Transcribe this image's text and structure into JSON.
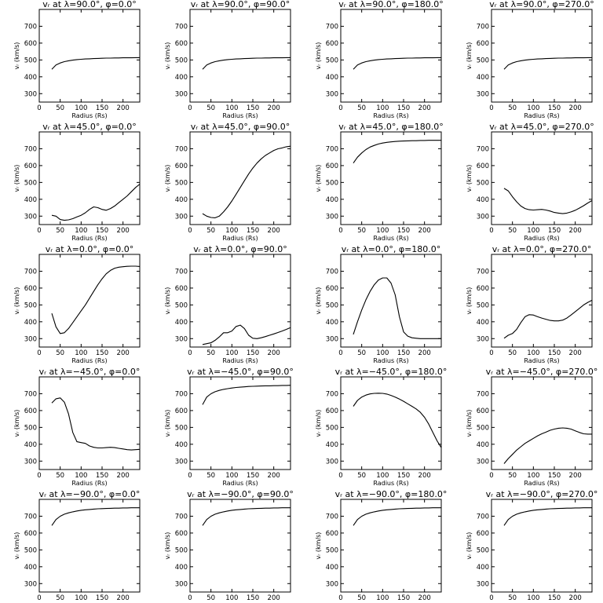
{
  "chart_data": [
    {
      "type": "line",
      "title": "vᵣ at λ=90.0°, φ=0.0°",
      "xlabel": "Radius (Rs)",
      "ylabel": "vᵣ (km/s)",
      "xlim": [
        0,
        240
      ],
      "ylim": [
        250,
        800
      ],
      "x": [
        30,
        40,
        50,
        60,
        70,
        80,
        90,
        100,
        110,
        120,
        130,
        140,
        150,
        160,
        170,
        180,
        190,
        200,
        210,
        220,
        230,
        240
      ],
      "y": [
        445,
        470,
        482,
        490,
        495,
        499,
        502,
        504,
        506,
        507,
        508,
        509,
        510,
        511,
        511,
        512,
        512,
        513,
        513,
        513,
        514,
        514
      ]
    },
    {
      "type": "line",
      "title": "vᵣ at λ=90.0°, φ=90.0°",
      "xlabel": "Radius (Rs)",
      "ylabel": "vᵣ (km/s)",
      "xlim": [
        0,
        240
      ],
      "ylim": [
        250,
        800
      ],
      "x": [
        30,
        40,
        50,
        60,
        70,
        80,
        90,
        100,
        110,
        120,
        130,
        140,
        150,
        160,
        170,
        180,
        190,
        200,
        210,
        220,
        230,
        240
      ],
      "y": [
        445,
        470,
        482,
        490,
        495,
        499,
        502,
        504,
        506,
        507,
        508,
        509,
        510,
        511,
        511,
        512,
        512,
        513,
        513,
        513,
        514,
        514
      ]
    },
    {
      "type": "line",
      "title": "vᵣ at λ=90.0°, φ=180.0°",
      "xlabel": "Radius (Rs)",
      "ylabel": "vᵣ (km/s)",
      "xlim": [
        0,
        240
      ],
      "ylim": [
        250,
        800
      ],
      "x": [
        30,
        40,
        50,
        60,
        70,
        80,
        90,
        100,
        110,
        120,
        130,
        140,
        150,
        160,
        170,
        180,
        190,
        200,
        210,
        220,
        230,
        240
      ],
      "y": [
        445,
        470,
        482,
        490,
        495,
        499,
        502,
        504,
        506,
        507,
        508,
        509,
        510,
        511,
        511,
        512,
        512,
        513,
        513,
        513,
        514,
        514
      ]
    },
    {
      "type": "line",
      "title": "vᵣ at λ=90.0°, φ=270.0°",
      "xlabel": "Radius (Rs)",
      "ylabel": "vᵣ (km/s)",
      "xlim": [
        0,
        240
      ],
      "ylim": [
        250,
        800
      ],
      "x": [
        30,
        40,
        50,
        60,
        70,
        80,
        90,
        100,
        110,
        120,
        130,
        140,
        150,
        160,
        170,
        180,
        190,
        200,
        210,
        220,
        230,
        240
      ],
      "y": [
        445,
        470,
        482,
        490,
        495,
        499,
        502,
        504,
        506,
        507,
        508,
        509,
        510,
        511,
        511,
        512,
        512,
        513,
        513,
        513,
        514,
        514
      ]
    },
    {
      "type": "line",
      "title": "vᵣ at λ=45.0°, φ=0.0°",
      "xlabel": "Radius (Rs)",
      "ylabel": "vᵣ (km/s)",
      "xlim": [
        0,
        240
      ],
      "ylim": [
        250,
        800
      ],
      "x": [
        30,
        40,
        50,
        60,
        70,
        80,
        90,
        100,
        110,
        120,
        130,
        140,
        150,
        160,
        170,
        180,
        190,
        200,
        210,
        220,
        230,
        240
      ],
      "y": [
        305,
        300,
        280,
        275,
        278,
        285,
        295,
        305,
        320,
        340,
        355,
        350,
        340,
        335,
        345,
        360,
        380,
        400,
        420,
        445,
        470,
        490
      ]
    },
    {
      "type": "line",
      "title": "vᵣ at λ=45.0°, φ=90.0°",
      "xlabel": "Radius (Rs)",
      "ylabel": "vᵣ (km/s)",
      "xlim": [
        0,
        240
      ],
      "ylim": [
        250,
        800
      ],
      "x": [
        30,
        40,
        50,
        60,
        70,
        80,
        90,
        100,
        110,
        120,
        130,
        140,
        150,
        160,
        170,
        180,
        190,
        200,
        210,
        220,
        230,
        240
      ],
      "y": [
        315,
        300,
        292,
        290,
        300,
        325,
        355,
        390,
        430,
        470,
        510,
        550,
        585,
        615,
        640,
        660,
        675,
        690,
        700,
        705,
        712,
        715
      ]
    },
    {
      "type": "line",
      "title": "vᵣ at λ=45.0°, φ=180.0°",
      "xlabel": "Radius (Rs)",
      "ylabel": "vᵣ (km/s)",
      "xlim": [
        0,
        240
      ],
      "ylim": [
        250,
        800
      ],
      "x": [
        30,
        40,
        50,
        60,
        70,
        80,
        90,
        100,
        110,
        120,
        130,
        140,
        150,
        160,
        170,
        180,
        190,
        200,
        210,
        220,
        230,
        240
      ],
      "y": [
        615,
        650,
        675,
        695,
        710,
        720,
        728,
        734,
        738,
        741,
        743,
        745,
        746,
        747,
        748,
        748,
        749,
        749,
        750,
        750,
        750,
        750
      ]
    },
    {
      "type": "line",
      "title": "vᵣ at λ=45.0°, φ=270.0°",
      "xlabel": "Radius (Rs)",
      "ylabel": "vᵣ (km/s)",
      "xlim": [
        0,
        240
      ],
      "ylim": [
        250,
        800
      ],
      "x": [
        30,
        40,
        50,
        60,
        70,
        80,
        90,
        100,
        110,
        120,
        130,
        140,
        150,
        160,
        170,
        180,
        190,
        200,
        210,
        220,
        230,
        240
      ],
      "y": [
        465,
        450,
        415,
        385,
        360,
        345,
        338,
        336,
        338,
        340,
        336,
        330,
        322,
        318,
        315,
        318,
        325,
        335,
        348,
        362,
        378,
        392
      ]
    },
    {
      "type": "line",
      "title": "vᵣ at λ=0.0°, φ=0.0°",
      "xlabel": "Radius (Rs)",
      "ylabel": "vᵣ (km/s)",
      "xlim": [
        0,
        240
      ],
      "ylim": [
        250,
        800
      ],
      "x": [
        30,
        40,
        50,
        60,
        70,
        80,
        90,
        100,
        110,
        120,
        130,
        140,
        150,
        160,
        170,
        180,
        190,
        200,
        210,
        220,
        230,
        240
      ],
      "y": [
        450,
        370,
        330,
        335,
        360,
        395,
        430,
        465,
        500,
        540,
        580,
        620,
        655,
        685,
        705,
        718,
        724,
        727,
        729,
        730,
        730,
        728
      ]
    },
    {
      "type": "line",
      "title": "vᵣ at λ=0.0°, φ=90.0°",
      "xlabel": "Radius (Rs)",
      "ylabel": "vᵣ (km/s)",
      "xlim": [
        0,
        240
      ],
      "ylim": [
        250,
        800
      ],
      "x": [
        30,
        40,
        50,
        60,
        70,
        80,
        90,
        100,
        110,
        120,
        130,
        140,
        150,
        160,
        170,
        180,
        190,
        200,
        210,
        220,
        230,
        240
      ],
      "y": [
        265,
        270,
        275,
        290,
        310,
        335,
        335,
        345,
        372,
        380,
        360,
        320,
        302,
        300,
        305,
        312,
        320,
        328,
        336,
        345,
        355,
        365
      ]
    },
    {
      "type": "line",
      "title": "vᵣ at λ=0.0°, φ=180.0°",
      "xlabel": "Radius (Rs)",
      "ylabel": "vᵣ (km/s)",
      "xlim": [
        0,
        240
      ],
      "ylim": [
        250,
        800
      ],
      "x": [
        30,
        40,
        50,
        60,
        70,
        80,
        90,
        100,
        110,
        120,
        130,
        140,
        150,
        160,
        170,
        180,
        190,
        200,
        210,
        220,
        230,
        240
      ],
      "y": [
        325,
        400,
        470,
        530,
        580,
        620,
        648,
        660,
        660,
        630,
        560,
        430,
        340,
        315,
        305,
        302,
        300,
        300,
        300,
        300,
        300,
        300
      ]
    },
    {
      "type": "line",
      "title": "vᵣ at λ=0.0°, φ=270.0°",
      "xlabel": "Radius (Rs)",
      "ylabel": "vᵣ (km/s)",
      "xlim": [
        0,
        240
      ],
      "ylim": [
        250,
        800
      ],
      "x": [
        30,
        40,
        50,
        60,
        70,
        80,
        90,
        100,
        110,
        120,
        130,
        140,
        150,
        160,
        170,
        180,
        190,
        200,
        210,
        220,
        230,
        240
      ],
      "y": [
        302,
        320,
        330,
        355,
        395,
        430,
        442,
        440,
        430,
        422,
        415,
        408,
        405,
        405,
        410,
        422,
        440,
        460,
        480,
        500,
        515,
        528
      ]
    },
    {
      "type": "line",
      "title": "vᵣ at λ=−45.0°, φ=0.0°",
      "xlabel": "Radius (Rs)",
      "ylabel": "vᵣ (km/s)",
      "xlim": [
        0,
        240
      ],
      "ylim": [
        250,
        800
      ],
      "x": [
        30,
        40,
        50,
        60,
        70,
        80,
        90,
        100,
        110,
        120,
        130,
        140,
        150,
        160,
        170,
        180,
        190,
        200,
        210,
        220,
        230,
        240
      ],
      "y": [
        645,
        670,
        675,
        650,
        580,
        470,
        415,
        410,
        405,
        390,
        382,
        378,
        378,
        380,
        382,
        380,
        376,
        372,
        368,
        366,
        368,
        370
      ]
    },
    {
      "type": "line",
      "title": "vᵣ at λ=−45.0°, φ=90.0°",
      "xlabel": "Radius (Rs)",
      "ylabel": "vᵣ (km/s)",
      "xlim": [
        0,
        240
      ],
      "ylim": [
        250,
        800
      ],
      "x": [
        30,
        40,
        50,
        60,
        70,
        80,
        90,
        100,
        110,
        120,
        130,
        140,
        150,
        160,
        170,
        180,
        190,
        200,
        210,
        220,
        230,
        240
      ],
      "y": [
        635,
        680,
        700,
        712,
        720,
        726,
        730,
        734,
        737,
        739,
        741,
        743,
        744,
        745,
        746,
        747,
        747,
        748,
        748,
        749,
        749,
        750
      ]
    },
    {
      "type": "line",
      "title": "vᵣ at λ=−45.0°, φ=180.0°",
      "xlabel": "Radius (Rs)",
      "ylabel": "vᵣ (km/s)",
      "xlim": [
        0,
        240
      ],
      "ylim": [
        250,
        800
      ],
      "x": [
        30,
        40,
        50,
        60,
        70,
        80,
        90,
        100,
        110,
        120,
        130,
        140,
        150,
        160,
        170,
        180,
        190,
        200,
        210,
        220,
        230,
        240
      ],
      "y": [
        625,
        660,
        680,
        692,
        699,
        702,
        703,
        702,
        698,
        690,
        680,
        668,
        655,
        640,
        625,
        610,
        590,
        560,
        520,
        470,
        420,
        380
      ]
    },
    {
      "type": "line",
      "title": "vᵣ at λ=−45.0°, φ=270.0°",
      "xlabel": "Radius (Rs)",
      "ylabel": "vᵣ (km/s)",
      "xlim": [
        0,
        240
      ],
      "ylim": [
        250,
        800
      ],
      "x": [
        30,
        40,
        50,
        60,
        70,
        80,
        90,
        100,
        110,
        120,
        130,
        140,
        150,
        160,
        170,
        180,
        190,
        200,
        210,
        220,
        230,
        240
      ],
      "y": [
        285,
        315,
        340,
        365,
        385,
        405,
        420,
        435,
        450,
        462,
        472,
        483,
        490,
        495,
        497,
        495,
        490,
        480,
        470,
        462,
        460,
        460
      ]
    },
    {
      "type": "line",
      "title": "vᵣ at λ=−90.0°, φ=0.0°",
      "xlabel": "Radius (Rs)",
      "ylabel": "vᵣ (km/s)",
      "xlim": [
        0,
        240
      ],
      "ylim": [
        250,
        800
      ],
      "x": [
        30,
        40,
        50,
        60,
        70,
        80,
        90,
        100,
        110,
        120,
        130,
        140,
        150,
        160,
        170,
        180,
        190,
        200,
        210,
        220,
        230,
        240
      ],
      "y": [
        645,
        680,
        700,
        712,
        720,
        726,
        731,
        735,
        738,
        740,
        742,
        744,
        745,
        746,
        747,
        748,
        748,
        749,
        749,
        750,
        750,
        750
      ]
    },
    {
      "type": "line",
      "title": "vᵣ at λ=−90.0°, φ=90.0°",
      "xlabel": "Radius (Rs)",
      "ylabel": "vᵣ (km/s)",
      "xlim": [
        0,
        240
      ],
      "ylim": [
        250,
        800
      ],
      "x": [
        30,
        40,
        50,
        60,
        70,
        80,
        90,
        100,
        110,
        120,
        130,
        140,
        150,
        160,
        170,
        180,
        190,
        200,
        210,
        220,
        230,
        240
      ],
      "y": [
        645,
        680,
        700,
        712,
        720,
        726,
        731,
        735,
        738,
        740,
        742,
        744,
        745,
        746,
        747,
        748,
        748,
        749,
        749,
        750,
        750,
        750
      ]
    },
    {
      "type": "line",
      "title": "vᵣ at λ=−90.0°, φ=180.0°",
      "xlabel": "Radius (Rs)",
      "ylabel": "vᵣ (km/s)",
      "xlim": [
        0,
        240
      ],
      "ylim": [
        250,
        800
      ],
      "x": [
        30,
        40,
        50,
        60,
        70,
        80,
        90,
        100,
        110,
        120,
        130,
        140,
        150,
        160,
        170,
        180,
        190,
        200,
        210,
        220,
        230,
        240
      ],
      "y": [
        645,
        680,
        700,
        712,
        720,
        726,
        731,
        735,
        738,
        740,
        742,
        744,
        745,
        746,
        747,
        748,
        748,
        749,
        749,
        750,
        750,
        750
      ]
    },
    {
      "type": "line",
      "title": "vᵣ at λ=−90.0°, φ=270.0°",
      "xlabel": "Radius (Rs)",
      "ylabel": "vᵣ (km/s)",
      "xlim": [
        0,
        240
      ],
      "ylim": [
        250,
        800
      ],
      "x": [
        30,
        40,
        50,
        60,
        70,
        80,
        90,
        100,
        110,
        120,
        130,
        140,
        150,
        160,
        170,
        180,
        190,
        200,
        210,
        220,
        230,
        240
      ],
      "y": [
        645,
        680,
        700,
        712,
        720,
        726,
        731,
        735,
        738,
        740,
        742,
        744,
        745,
        746,
        747,
        748,
        748,
        749,
        749,
        750,
        750,
        750
      ]
    }
  ],
  "xticks": [
    0,
    50,
    100,
    150,
    200
  ],
  "yticks": [
    300,
    400,
    500,
    600,
    700
  ]
}
